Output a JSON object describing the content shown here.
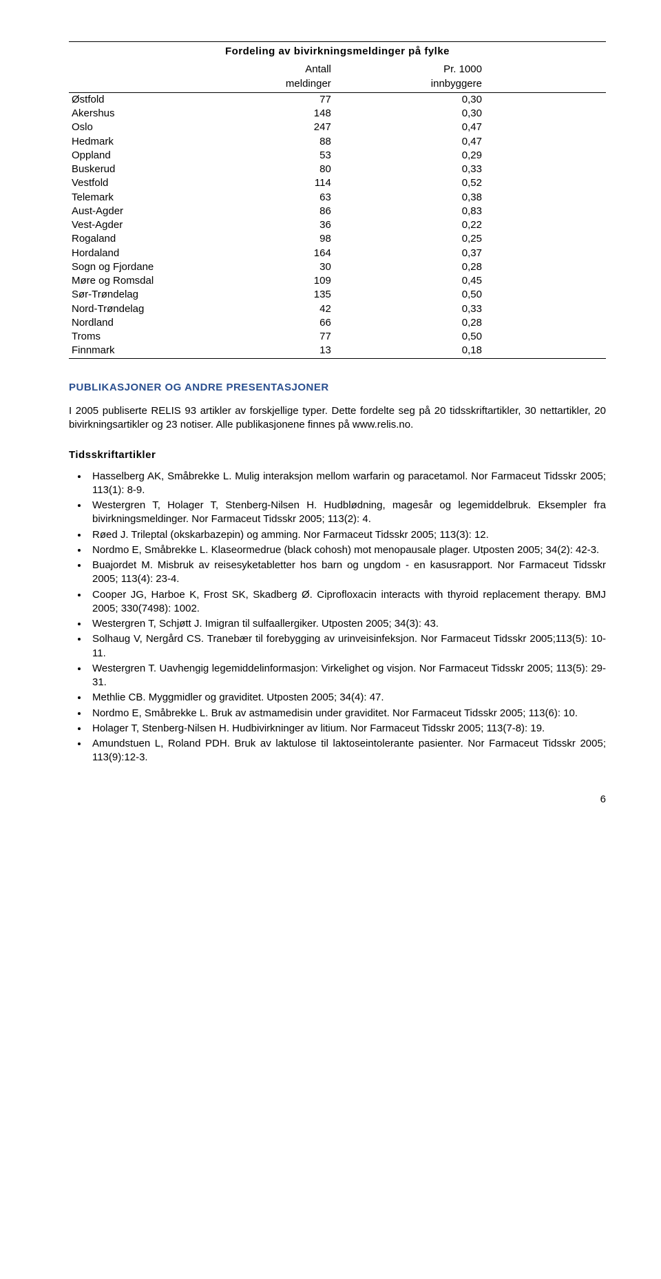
{
  "table": {
    "title": "Fordeling av bivirkningsmeldinger på fylke",
    "col1": "Antall meldinger",
    "col2": "Pr. 1000 innbyggere",
    "rows": [
      {
        "name": "Østfold",
        "n": "77",
        "r": "0,30"
      },
      {
        "name": "Akershus",
        "n": "148",
        "r": "0,30"
      },
      {
        "name": "Oslo",
        "n": "247",
        "r": "0,47"
      },
      {
        "name": "Hedmark",
        "n": "88",
        "r": "0,47"
      },
      {
        "name": "Oppland",
        "n": "53",
        "r": "0,29"
      },
      {
        "name": "Buskerud",
        "n": "80",
        "r": "0,33"
      },
      {
        "name": "Vestfold",
        "n": "114",
        "r": "0,52"
      },
      {
        "name": "Telemark",
        "n": "63",
        "r": "0,38"
      },
      {
        "name": "Aust-Agder",
        "n": "86",
        "r": "0,83"
      },
      {
        "name": "Vest-Agder",
        "n": "36",
        "r": "0,22"
      },
      {
        "name": "Rogaland",
        "n": "98",
        "r": "0,25"
      },
      {
        "name": "Hordaland",
        "n": "164",
        "r": "0,37"
      },
      {
        "name": "Sogn og Fjordane",
        "n": "30",
        "r": "0,28"
      },
      {
        "name": "Møre og Romsdal",
        "n": "109",
        "r": "0,45"
      },
      {
        "name": "Sør-Trøndelag",
        "n": "135",
        "r": "0,50"
      },
      {
        "name": "Nord-Trøndelag",
        "n": "42",
        "r": "0,33"
      },
      {
        "name": "Nordland",
        "n": "66",
        "r": "0,28"
      },
      {
        "name": "Troms",
        "n": "77",
        "r": "0,50"
      },
      {
        "name": "Finnmark",
        "n": "13",
        "r": "0,18"
      }
    ]
  },
  "section_heading": "PUBLIKASJONER OG ANDRE PRESENTASJONER",
  "intro_paragraph": "I 2005 publiserte RELIS 93 artikler av forskjellige typer. Dette fordelte seg på 20 tidsskriftartikler, 30 nettartikler, 20 bivirkningsartikler og 23 notiser. Alle publikasjonene finnes på www.relis.no.",
  "sub_heading": "Tidsskriftartikler",
  "publications": [
    "Hasselberg AK, Småbrekke L. Mulig interaksjon mellom warfarin og paracetamol. Nor Farmaceut Tidsskr 2005; 113(1): 8-9.",
    "Westergren T, Holager T, Stenberg-Nilsen H. Hudblødning, magesår og legemiddelbruk. Eksempler fra bivirkningsmeldinger. Nor Farmaceut Tidsskr 2005; 113(2): 4.",
    "Røed J. Trileptal (okskarbazepin) og amming. Nor Farmaceut Tidsskr 2005; 113(3): 12.",
    "Nordmo E, Småbrekke L. Klaseormedrue (black cohosh) mot menopausale plager. Utposten 2005; 34(2): 42-3.",
    "Buajordet M. Misbruk av reisesyketabletter hos barn og ungdom - en kasusrapport. Nor Farmaceut Tidsskr 2005; 113(4): 23-4.",
    "Cooper JG, Harboe K, Frost SK, Skadberg Ø. Ciprofloxacin interacts with thyroid replacement therapy. BMJ 2005; 330(7498): 1002.",
    "Westergren T, Schjøtt J. Imigran til sulfaallergiker. Utposten 2005; 34(3): 43.",
    "Solhaug V, Nergård CS. Tranebær til forebygging av urinveisinfeksjon. Nor Farmaceut Tidsskr 2005;113(5): 10-11.",
    "Westergren T. Uavhengig legemiddelinformasjon: Virkelighet og visjon. Nor Farmaceut Tidsskr 2005; 113(5): 29-31.",
    "Methlie CB. Myggmidler og graviditet. Utposten 2005; 34(4): 47.",
    "Nordmo E, Småbrekke L. Bruk av astmamedisin under graviditet. Nor Farmaceut Tidsskr 2005; 113(6): 10.",
    "Holager T, Stenberg-Nilsen H. Hudbivirkninger av litium. Nor Farmaceut Tidsskr 2005; 113(7-8): 19.",
    "Amundstuen L, Roland PDH. Bruk av laktulose til laktoseintolerante pasienter. Nor Farmaceut Tidsskr 2005; 113(9):12-3."
  ],
  "page_number": "6"
}
